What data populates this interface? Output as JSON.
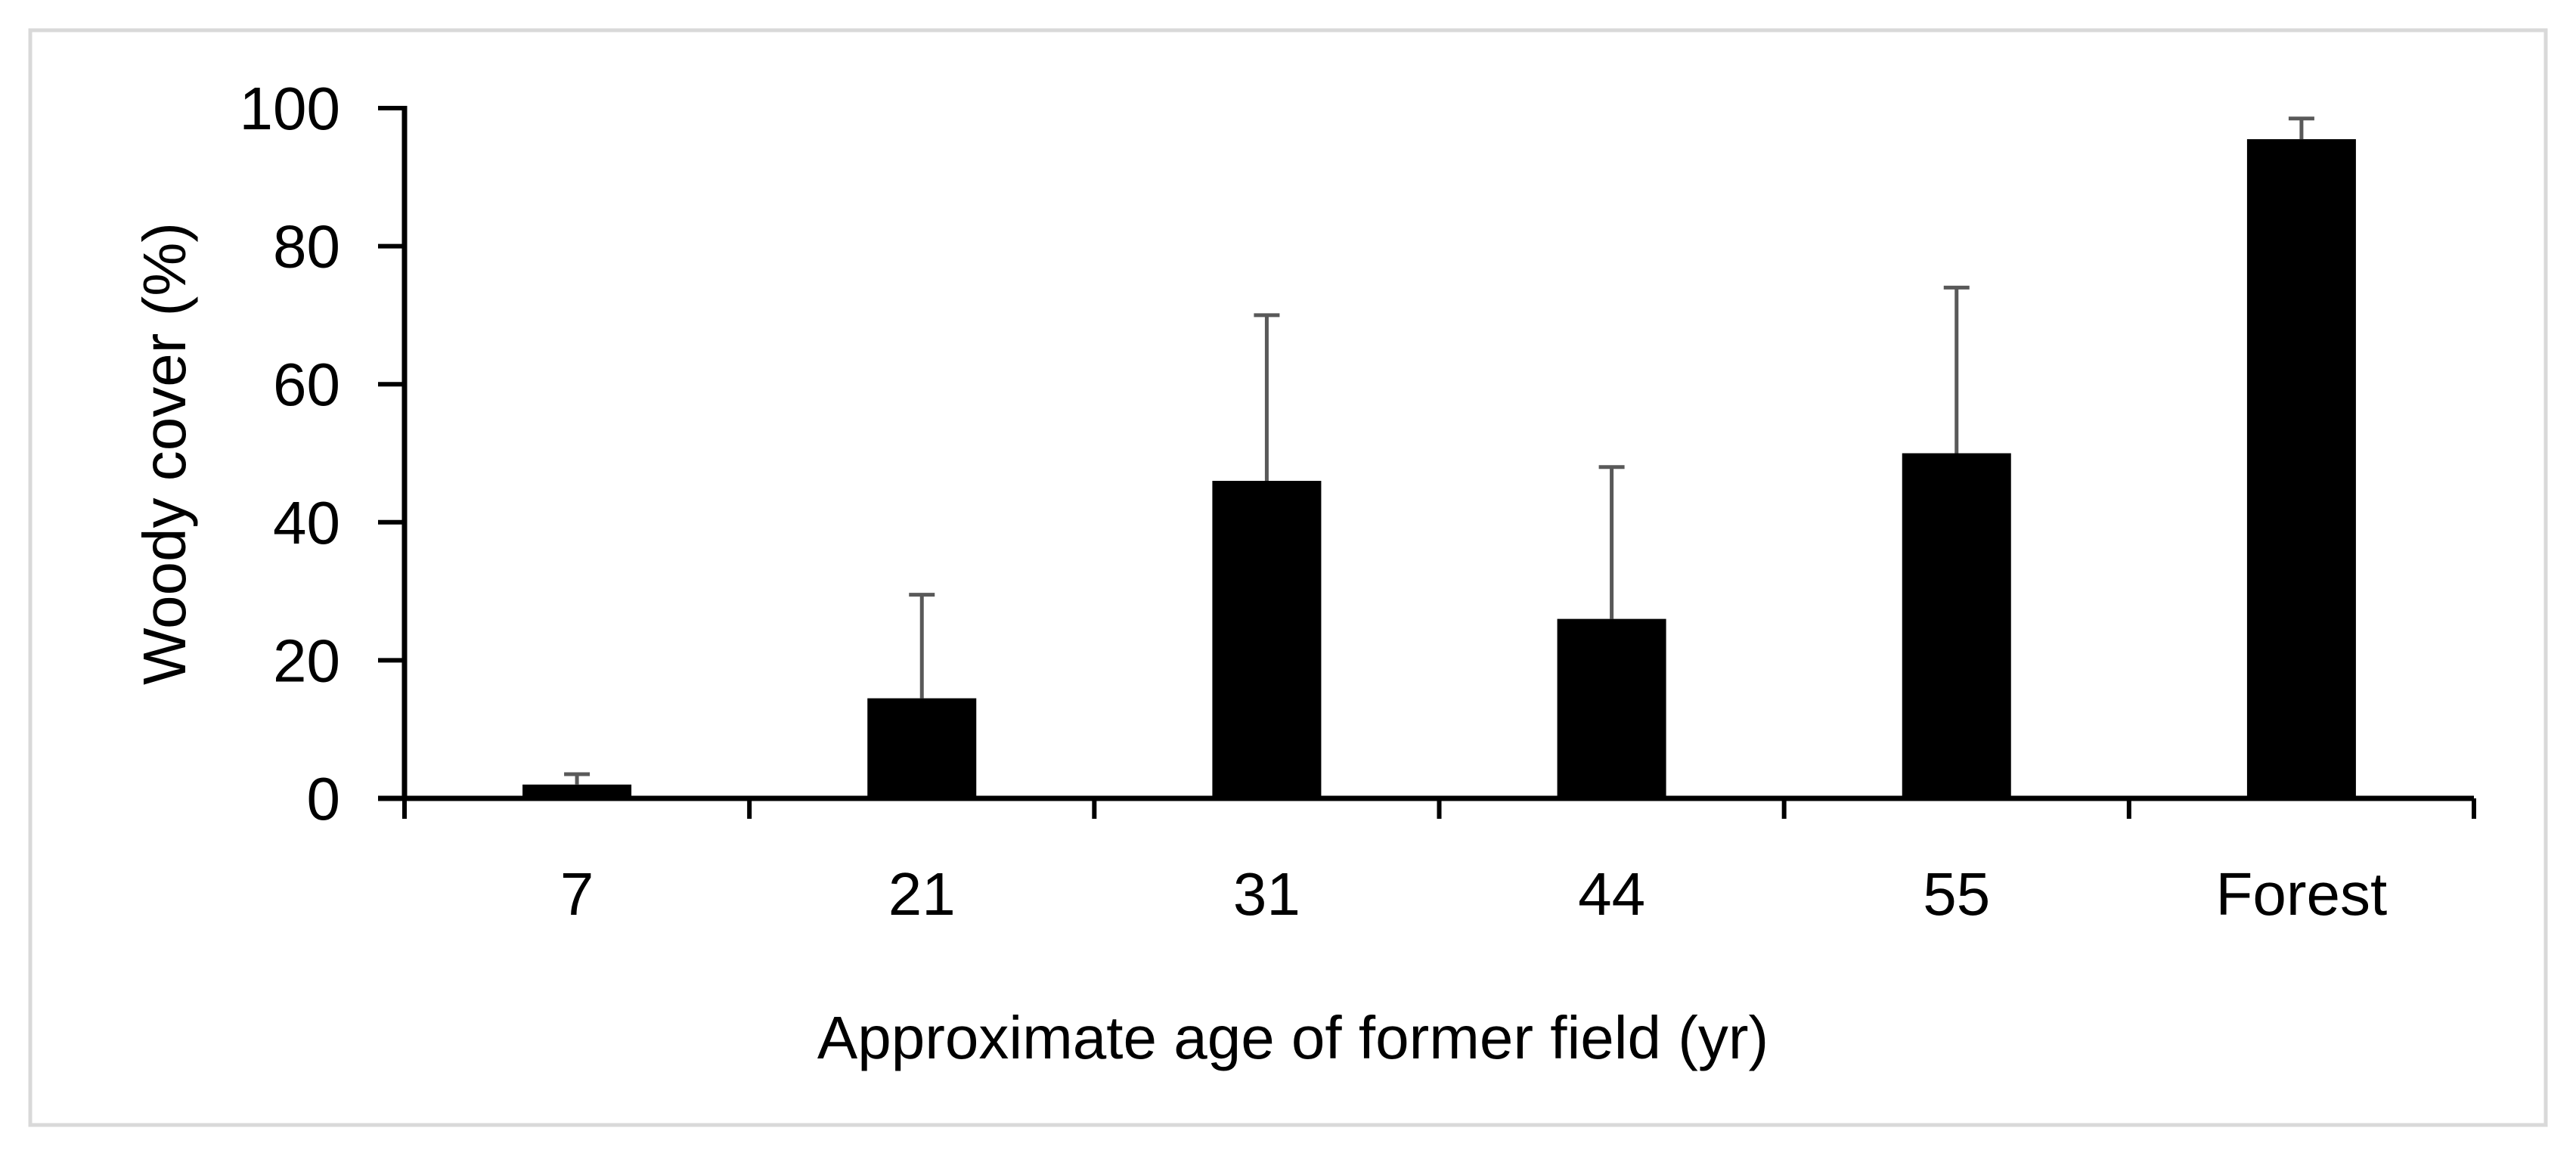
{
  "chart_data": {
    "type": "bar",
    "title": "",
    "xlabel": "Approximate age of former field (yr)",
    "ylabel": "Woody cover (%)",
    "categories": [
      "7",
      "21",
      "31",
      "44",
      "55",
      "Forest"
    ],
    "values": [
      2,
      14.5,
      46,
      26,
      50,
      95.5
    ],
    "error_upper": [
      1.5,
      15,
      24,
      22,
      24,
      3
    ],
    "ylim": [
      0,
      100
    ],
    "yticks": [
      0,
      20,
      40,
      60,
      80,
      100
    ],
    "ytick_labels": [
      "0",
      "20",
      "40",
      "60",
      "80",
      "100"
    ],
    "grid": false,
    "legend": "none",
    "colors": {
      "bar": "#000000",
      "error_bar": "#595959",
      "axis": "#000000",
      "frame": "#d9d9d9"
    }
  }
}
